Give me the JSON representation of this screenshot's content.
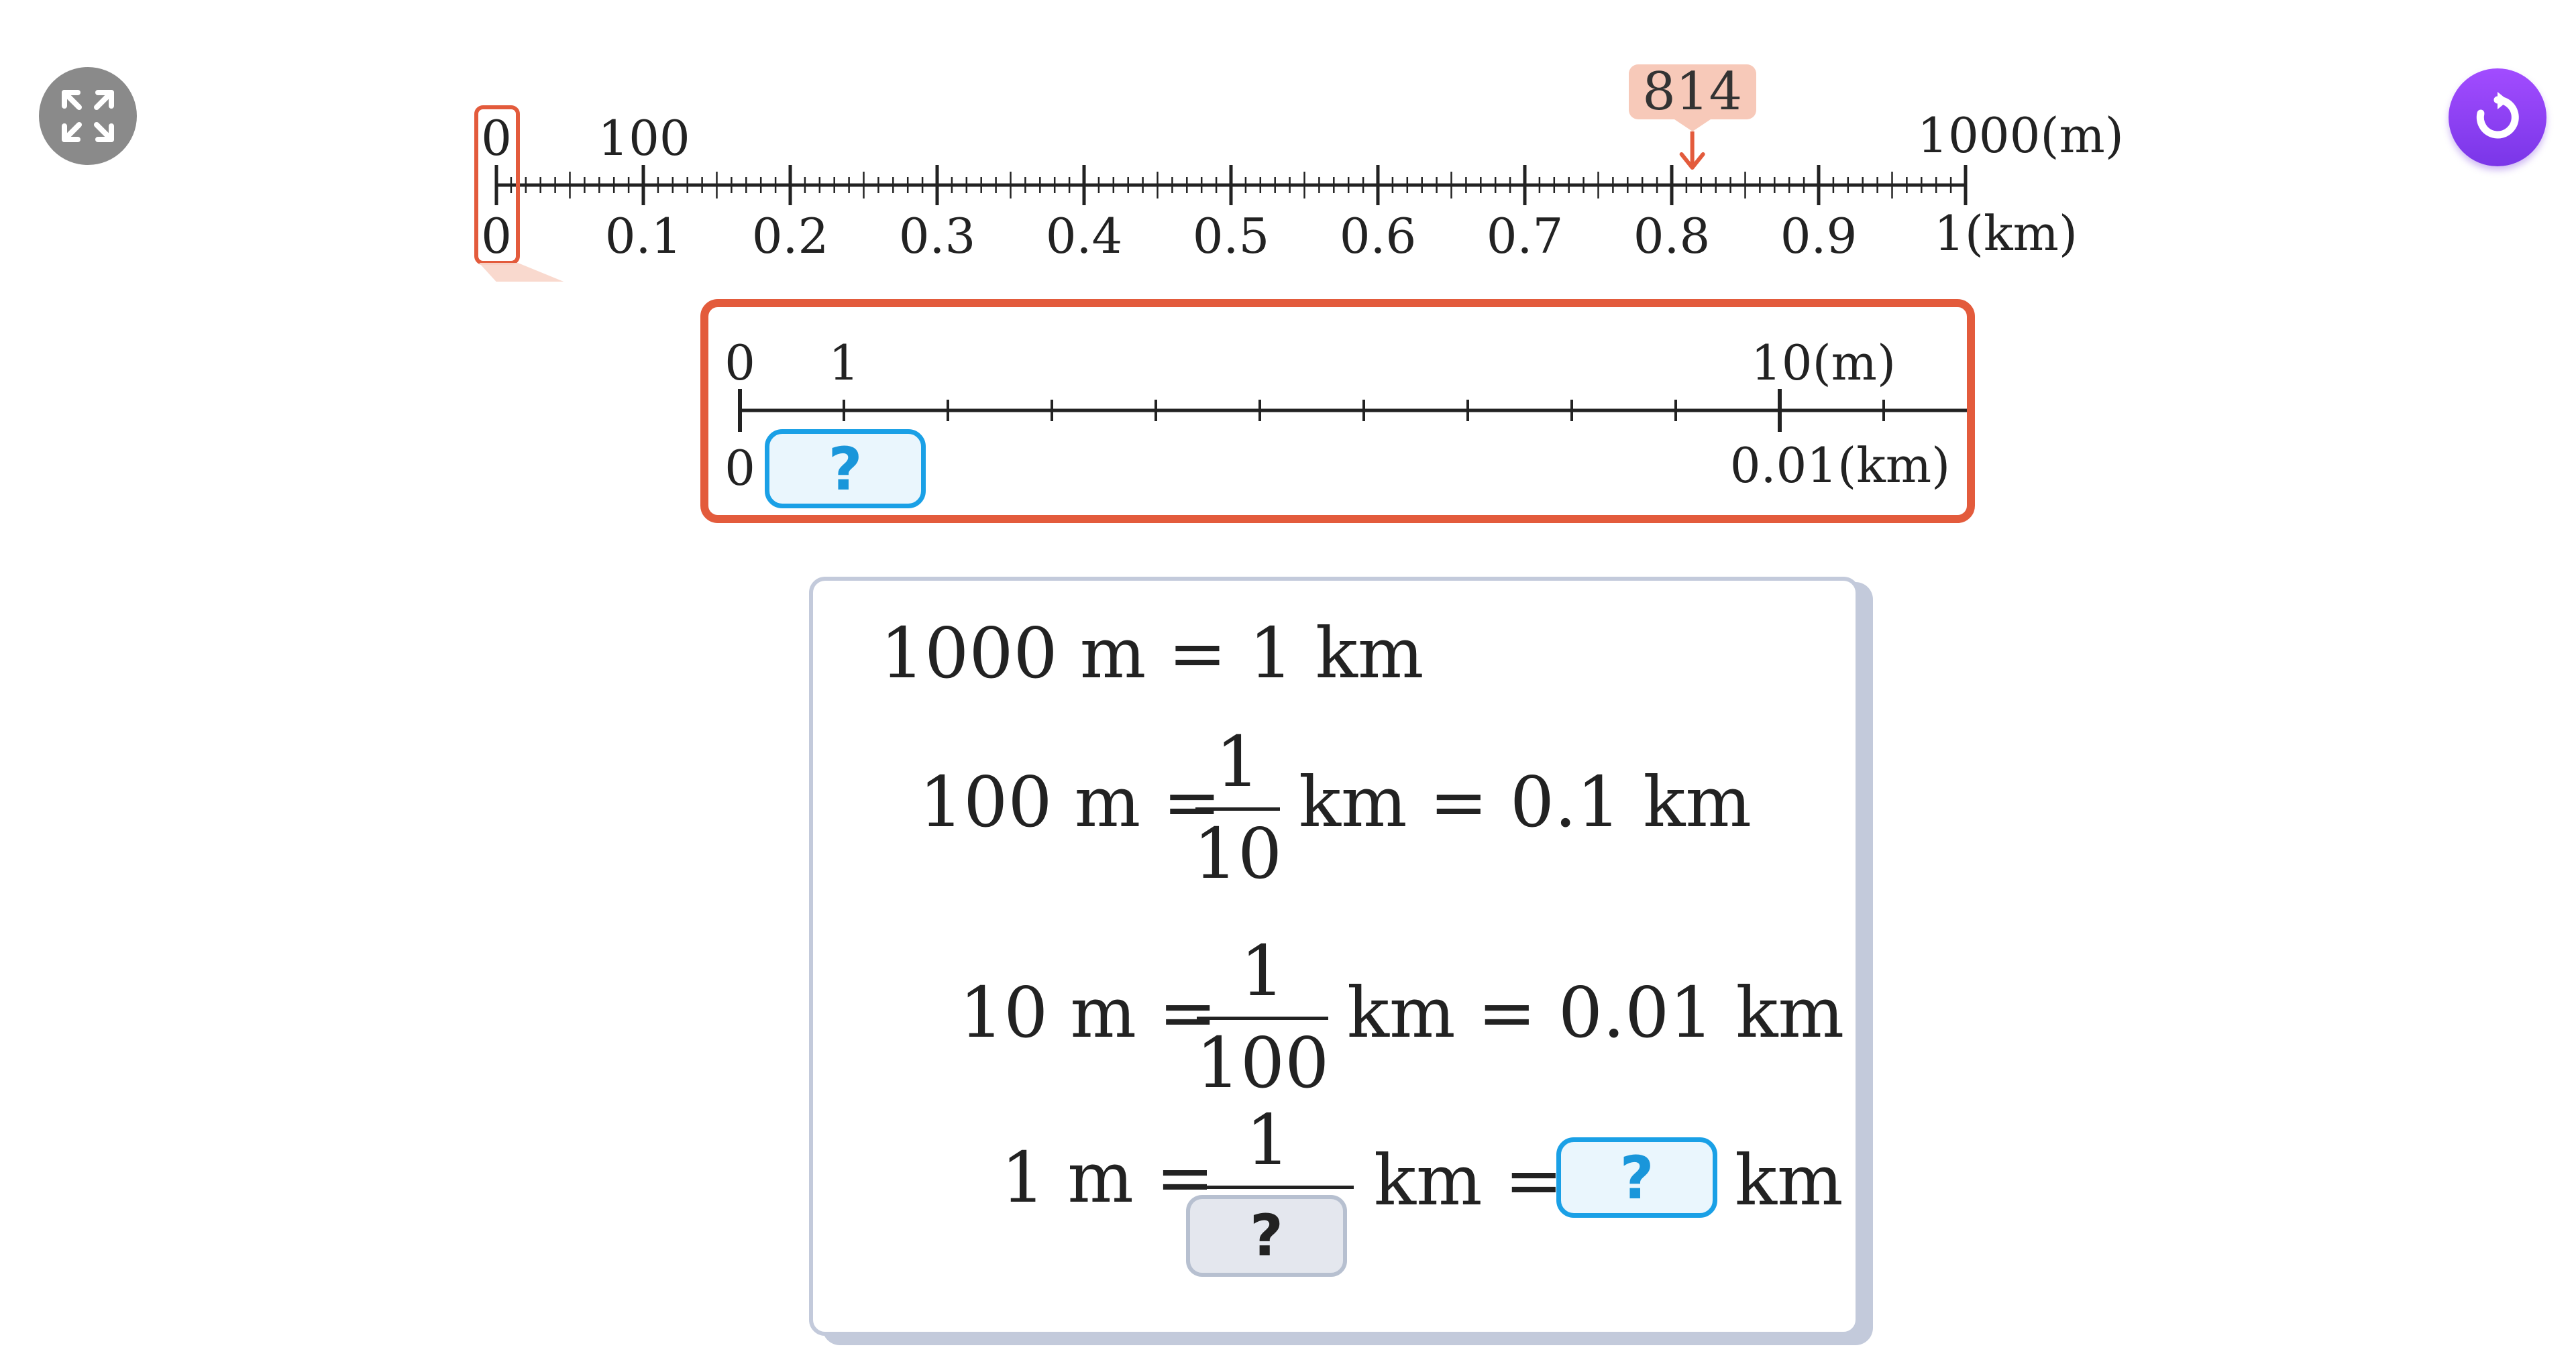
{
  "controls": {
    "expand_icon": "expand-icon",
    "reset_icon": "refresh-icon",
    "accent_purple": "#8b3df0",
    "gray": "#8a8a8a"
  },
  "main_line": {
    "top_labels": {
      "start": "0",
      "first": "100",
      "end": "1000(m)"
    },
    "bottom_labels": [
      "0",
      "0.1",
      "0.2",
      "0.3",
      "0.4",
      "0.5",
      "0.6",
      "0.7",
      "0.8",
      "0.9",
      "1(km)"
    ],
    "marker_value": 814,
    "marker_label": "814",
    "marker_color": "#f7c9b9",
    "accent_red": "#e35b3c"
  },
  "zoom_line": {
    "top_labels": {
      "start": "0",
      "first": "1",
      "end": "10(m)"
    },
    "bottom_start": "0",
    "bottom_end": "0.01(km)",
    "answer_placeholder": "?"
  },
  "equations": {
    "line1": "1000 m = 1 km",
    "line2": {
      "left": "100 m =",
      "num": "1",
      "den": "10",
      "right": "km = 0.1 km"
    },
    "line3": {
      "left": "10 m =",
      "num": "1",
      "den": "100",
      "right": "km = 0.01 km"
    },
    "line4": {
      "left": "1 m =",
      "num": "1",
      "den_placeholder": "?",
      "mid": "km =",
      "answer_placeholder": "?",
      "unit": "km"
    }
  }
}
